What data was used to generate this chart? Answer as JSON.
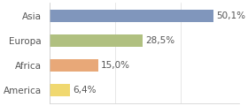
{
  "categories": [
    "Asia",
    "Europa",
    "Africa",
    "America"
  ],
  "values": [
    50.1,
    28.5,
    15.0,
    6.4
  ],
  "labels": [
    "50,1%",
    "28,5%",
    "15,0%",
    "6,4%"
  ],
  "bar_colors": [
    "#8096bc",
    "#b0c080",
    "#e8a878",
    "#f0d870"
  ],
  "background_color": "#ffffff",
  "xlim": [
    0,
    58
  ],
  "label_fontsize": 7.5,
  "tick_fontsize": 7.5,
  "bar_height": 0.5
}
